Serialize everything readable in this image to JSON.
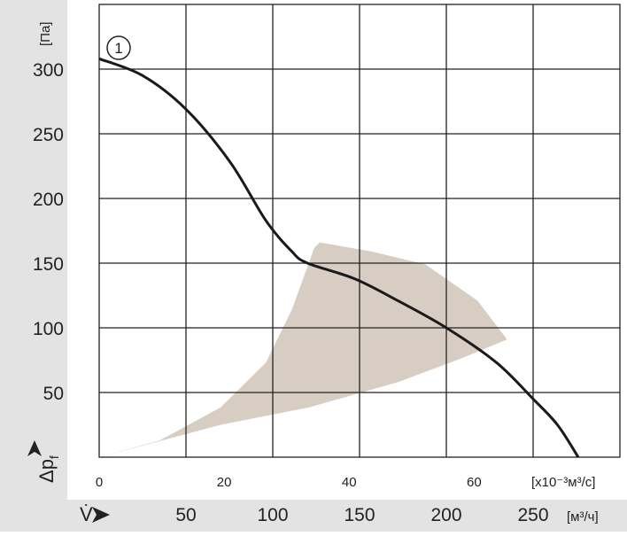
{
  "chart_data": {
    "type": "line",
    "annotation": "1",
    "x_label": "V̇",
    "x_unit": "[м³/ч]",
    "x2_unit": "[x10⁻³м³/с]",
    "y_label": "Δp",
    "y_label_sub": "f",
    "y_unit": "[Па]",
    "xlim": [
      0,
      300
    ],
    "xticks": [
      50,
      100,
      150,
      200,
      250
    ],
    "x2lim": [
      0,
      83.33
    ],
    "x2ticks": [
      0,
      20,
      40,
      60
    ],
    "ylim": [
      0,
      350
    ],
    "yticks": [
      50,
      100,
      150,
      200,
      250,
      300
    ],
    "grid": true,
    "series": [
      {
        "type": "area",
        "color": "#d8cdc2",
        "x": [
          0,
          70,
          121,
          172,
          208,
          235,
          218,
          188,
          157,
          127,
          124,
          111,
          96,
          70,
          35
        ],
        "values": [
          0,
          25,
          38.5,
          58,
          76,
          91,
          121,
          149,
          159,
          166,
          162,
          114,
          73,
          38.5,
          13
        ]
      },
      {
        "type": "line",
        "color": "#1a1a1a",
        "x": [
          0,
          25,
          50,
          75.5,
          96,
          111,
          120,
          147,
          172,
          200,
          229,
          250,
          264,
          276
        ],
        "values": [
          308,
          295,
          269,
          228,
          183,
          159,
          150,
          138,
          121,
          100,
          73,
          45,
          25,
          0
        ]
      }
    ]
  }
}
